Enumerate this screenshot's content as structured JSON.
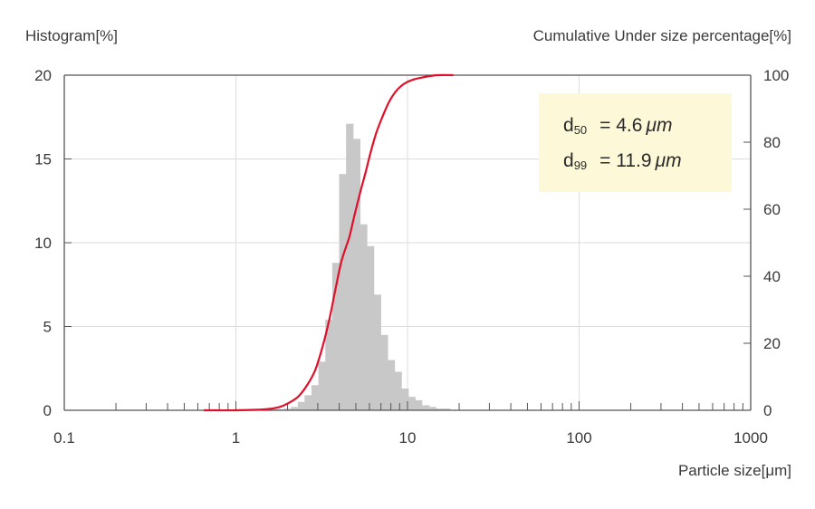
{
  "chart_data": {
    "type": "bar",
    "ylabel_left": "Histogram[%]",
    "ylabel_right": "Cumulative Under size percentage[%]",
    "xlabel": "Particle size[μm]",
    "x_scale": "log",
    "xlim": [
      0.1,
      1000
    ],
    "ylim_left": [
      0,
      20
    ],
    "ylim_right": [
      0,
      100
    ],
    "x_ticks": [
      "0.1",
      "1",
      "10",
      "100",
      "1000"
    ],
    "y_ticks_left": [
      "0",
      "5",
      "10",
      "15",
      "20"
    ],
    "y_ticks_right": [
      "0",
      "20",
      "40",
      "60",
      "80",
      "100"
    ],
    "grid": true,
    "histogram": {
      "name": "Histogram",
      "color": "#c8c8c8",
      "bins": [
        {
          "x": 0.72,
          "value": 0.05
        },
        {
          "x": 0.79,
          "value": 0.05
        },
        {
          "x": 0.87,
          "value": 0.05
        },
        {
          "x": 0.95,
          "value": 0.05
        },
        {
          "x": 1.05,
          "value": 0.05
        },
        {
          "x": 1.15,
          "value": 0.05
        },
        {
          "x": 1.26,
          "value": 0.05
        },
        {
          "x": 1.38,
          "value": 0.05
        },
        {
          "x": 1.51,
          "value": 0.05
        },
        {
          "x": 1.66,
          "value": 0.05
        },
        {
          "x": 1.82,
          "value": 0.05
        },
        {
          "x": 2.0,
          "value": 0.1
        },
        {
          "x": 2.2,
          "value": 0.2
        },
        {
          "x": 2.41,
          "value": 0.5
        },
        {
          "x": 2.64,
          "value": 0.9
        },
        {
          "x": 2.9,
          "value": 1.5
        },
        {
          "x": 3.18,
          "value": 2.9
        },
        {
          "x": 3.49,
          "value": 5.4
        },
        {
          "x": 3.83,
          "value": 8.8
        },
        {
          "x": 4.2,
          "value": 14.1
        },
        {
          "x": 4.61,
          "value": 17.1
        },
        {
          "x": 5.06,
          "value": 16.2
        },
        {
          "x": 5.55,
          "value": 11.1
        },
        {
          "x": 6.09,
          "value": 9.8
        },
        {
          "x": 6.68,
          "value": 6.9
        },
        {
          "x": 7.33,
          "value": 4.5
        },
        {
          "x": 8.04,
          "value": 3.0
        },
        {
          "x": 8.82,
          "value": 2.3
        },
        {
          "x": 9.68,
          "value": 1.3
        },
        {
          "x": 10.6,
          "value": 0.8
        },
        {
          "x": 11.6,
          "value": 0.6
        },
        {
          "x": 12.8,
          "value": 0.3
        },
        {
          "x": 14.0,
          "value": 0.2
        },
        {
          "x": 15.4,
          "value": 0.1
        },
        {
          "x": 16.9,
          "value": 0.1
        }
      ]
    },
    "cumulative": {
      "name": "Cumulative Under size percentage",
      "color": "#e0102a",
      "x": [
        0.65,
        1.0,
        1.5,
        1.8,
        2.0,
        2.3,
        2.6,
        2.9,
        3.2,
        3.5,
        3.8,
        4.1,
        4.4,
        4.6,
        4.9,
        5.3,
        5.7,
        6.1,
        6.6,
        7.2,
        7.8,
        8.5,
        9.2,
        10.0,
        11.0,
        11.9,
        13.0,
        15.0,
        18.5
      ],
      "y": [
        0,
        0,
        0.3,
        1,
        2,
        4,
        7.5,
        12,
        19,
        27,
        36,
        44,
        49,
        52,
        58,
        65,
        71,
        77,
        83,
        88,
        92,
        95,
        96.8,
        98,
        98.8,
        99.2,
        99.6,
        100,
        100
      ]
    },
    "annotation": {
      "line1_prefix": "d",
      "line1_sub": "50",
      "line1_value": "=   4.6",
      "line1_unit": "μm",
      "line2_prefix": "d",
      "line2_sub": "99",
      "line2_value": "= 11.9",
      "line2_unit": "μm",
      "background": "#fcf8d8"
    }
  }
}
